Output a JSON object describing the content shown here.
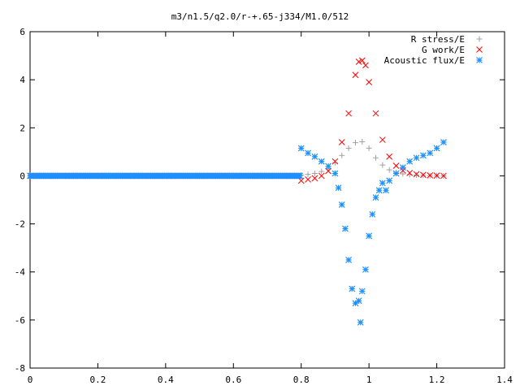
{
  "chart_data": {
    "type": "scatter",
    "title": "m3/n1.5/q2.0/r-+.65-j334/M1.0/512",
    "xlabel": "",
    "ylabel": "",
    "xlim": [
      0,
      1.4
    ],
    "ylim": [
      -8,
      6
    ],
    "x_ticks": [
      "0",
      "0.2",
      "0.4",
      "0.6",
      "0.8",
      "1",
      "1.2",
      "1.4"
    ],
    "y_ticks": [
      "-8",
      "-6",
      "-4",
      "-2",
      "0",
      "2",
      "4",
      "6"
    ],
    "grid": false,
    "legend_position": "top-right",
    "series": [
      {
        "name": "R stress/E",
        "marker": "plus",
        "color": "#a0a0a0",
        "x": [
          0.8,
          0.82,
          0.84,
          0.86,
          0.88,
          0.9,
          0.92,
          0.94,
          0.96,
          0.98,
          1.0,
          1.02,
          1.04,
          1.06,
          1.08,
          1.1,
          1.12,
          1.14,
          1.16,
          1.18,
          1.2,
          1.22
        ],
        "y": [
          0.03,
          0.06,
          0.1,
          0.18,
          0.3,
          0.55,
          0.85,
          1.15,
          1.38,
          1.42,
          1.15,
          0.75,
          0.45,
          0.25,
          0.14,
          0.08,
          0.05,
          0.03,
          0.02,
          0.01,
          0.01,
          0.0
        ]
      },
      {
        "name": "G work/E",
        "marker": "cross",
        "color": "#ff0000",
        "x": [
          0.8,
          0.82,
          0.84,
          0.86,
          0.88,
          0.9,
          0.92,
          0.94,
          0.96,
          0.97,
          0.98,
          0.99,
          1.0,
          1.02,
          1.04,
          1.06,
          1.08,
          1.1,
          1.12,
          1.14,
          1.16,
          1.18,
          1.2,
          1.22
        ],
        "y": [
          -0.2,
          -0.15,
          -0.1,
          0.0,
          0.2,
          0.6,
          1.4,
          2.6,
          4.2,
          4.75,
          4.8,
          4.6,
          3.9,
          2.6,
          1.5,
          0.8,
          0.42,
          0.22,
          0.12,
          0.07,
          0.04,
          0.02,
          0.01,
          0.0
        ]
      },
      {
        "name": "Acoustic flux/E",
        "marker": "star",
        "color": "#1e90ff",
        "x": [
          0.8,
          0.82,
          0.84,
          0.86,
          0.88,
          0.9,
          0.91,
          0.92,
          0.93,
          0.94,
          0.95,
          0.96,
          0.97,
          0.975,
          0.98,
          0.99,
          1.0,
          1.01,
          1.02,
          1.03,
          1.04,
          1.05,
          1.06,
          1.08,
          1.1,
          1.12,
          1.14,
          1.16,
          1.18,
          1.2,
          1.22
        ],
        "y": [
          1.15,
          0.95,
          0.8,
          0.6,
          0.4,
          0.1,
          -0.5,
          -1.2,
          -2.2,
          -3.5,
          -4.7,
          -5.3,
          -5.2,
          -6.1,
          -4.8,
          -3.9,
          -2.5,
          -1.6,
          -0.9,
          -0.6,
          -0.3,
          -0.6,
          -0.2,
          0.1,
          0.35,
          0.6,
          0.75,
          0.85,
          0.95,
          1.15,
          1.4
        ]
      }
    ]
  }
}
